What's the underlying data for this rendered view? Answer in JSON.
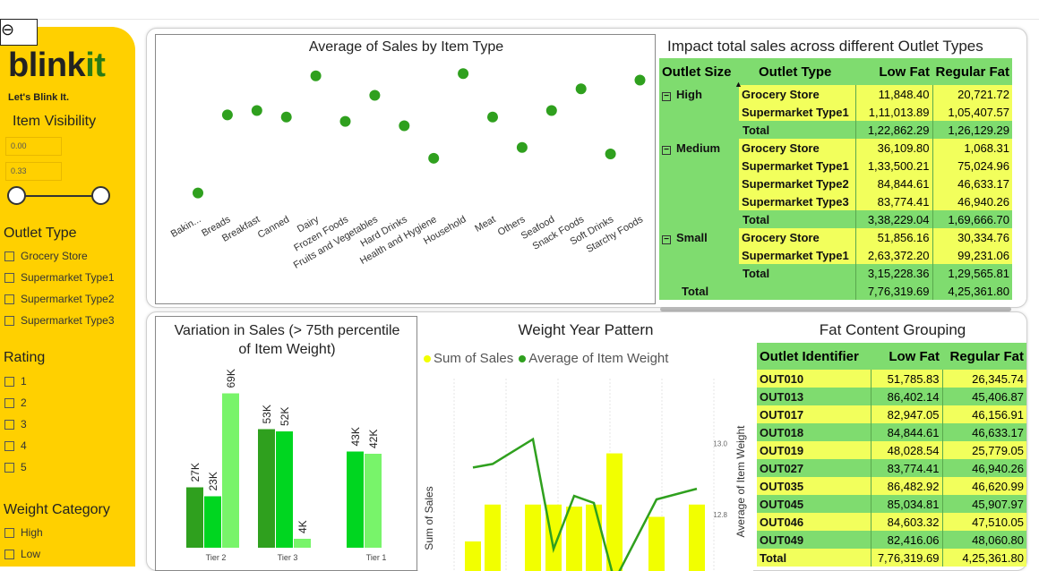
{
  "brand": {
    "name_part1": "blink",
    "name_part2": "it",
    "tagline": "Let's Blink It."
  },
  "colors": {
    "sidebar": "#ffd000",
    "green": "#2fa01e",
    "bright_green": "#00d620",
    "light_green": "#78f46a",
    "yellow": "#f2ff00",
    "table_green": "#7fdc6f",
    "table_yellow": "#f2ff5c"
  },
  "back_button": {
    "icon": "back-arrow-icon",
    "glyph": "⊖"
  },
  "filters": {
    "item_visibility": {
      "title": "Item Visibility",
      "min_value": "0.00",
      "max_value": "0.33",
      "min_fraction": 0.0,
      "max_fraction": 1.0
    },
    "outlet_type": {
      "title": "Outlet Type",
      "options": [
        "Grocery Store",
        "Supermarket Type1",
        "Supermarket Type2",
        "Supermarket Type3"
      ]
    },
    "rating": {
      "title": "Rating",
      "options": [
        "1",
        "2",
        "3",
        "4",
        "5"
      ]
    },
    "weight_category": {
      "title": "Weight Category",
      "options": [
        "High",
        "Low"
      ]
    }
  },
  "avg_sales_chart": {
    "title": "Average of Sales by Item Type",
    "chart_data": {
      "type": "scatter",
      "title": "Average of Sales by Item Type",
      "categories": [
        "Bakin...",
        "Breads",
        "Breakfast",
        "Canned",
        "Dairy",
        "Frozen Foods",
        "Fruits and Vegetables",
        "Hard Drinks",
        "Health and Hygiene",
        "Household",
        "Meat",
        "Others",
        "Seafood",
        "Snack Foods",
        "Soft Drinks",
        "Starchy Foods"
      ],
      "values": [
        124.0,
        142.0,
        143.0,
        141.5,
        151.0,
        140.5,
        146.5,
        139.5,
        132.0,
        151.5,
        141.5,
        134.5,
        143.0,
        148.0,
        133.0,
        150.0
      ],
      "ylim": [
        120,
        153
      ]
    }
  },
  "impact_table": {
    "title": "Impact total sales across different Outlet Types",
    "headers": [
      "Outlet Size",
      "Outlet Type",
      "Low Fat",
      "Regular Fat"
    ],
    "groups": [
      {
        "size": "High",
        "rows": [
          {
            "type": "Grocery Store",
            "low": "11,848.40",
            "reg": "20,721.72"
          },
          {
            "type": "Supermarket Type1",
            "low": "1,11,013.89",
            "reg": "1,05,407.57"
          },
          {
            "type": "Total",
            "low": "1,22,862.29",
            "reg": "1,26,129.29"
          }
        ]
      },
      {
        "size": "Medium",
        "rows": [
          {
            "type": "Grocery Store",
            "low": "36,109.80",
            "reg": "1,068.31"
          },
          {
            "type": "Supermarket Type1",
            "low": "1,33,500.21",
            "reg": "75,024.96"
          },
          {
            "type": "Supermarket Type2",
            "low": "84,844.61",
            "reg": "46,633.17"
          },
          {
            "type": "Supermarket Type3",
            "low": "83,774.41",
            "reg": "46,940.26"
          },
          {
            "type": "Total",
            "low": "3,38,229.04",
            "reg": "1,69,666.70"
          }
        ]
      },
      {
        "size": "Small",
        "rows": [
          {
            "type": "Grocery Store",
            "low": "51,856.16",
            "reg": "30,334.76"
          },
          {
            "type": "Supermarket Type1",
            "low": "2,63,372.20",
            "reg": "99,231.06"
          },
          {
            "type": "Total",
            "low": "3,15,228.36",
            "reg": "1,29,565.81"
          }
        ]
      }
    ],
    "grand_total": {
      "label": "Total",
      "low": "7,76,319.69",
      "reg": "4,25,361.80"
    }
  },
  "variation_chart": {
    "title_line1": "Variation in Sales (> 75th percentile",
    "title_line2": "of Item Weight)",
    "chart_data": {
      "type": "bar",
      "categories": [
        "Tier 2",
        "Tier 3",
        "Tier 1"
      ],
      "series": [
        {
          "values": [
            27,
            53,
            null
          ],
          "labels": [
            "27K",
            "53K",
            ""
          ],
          "color": "#2fa01e"
        },
        {
          "values": [
            23,
            52,
            43
          ],
          "labels": [
            "23K",
            "52K",
            "43K"
          ],
          "color": "#00d620"
        },
        {
          "values": [
            69,
            4,
            42
          ],
          "labels": [
            "69K",
            "4K",
            "42K"
          ],
          "color": "#78f46a"
        }
      ],
      "ylim": [
        0,
        72
      ]
    }
  },
  "weight_year_chart": {
    "title": "Weight Year Pattern",
    "legend": [
      "Sum of Sales",
      "Average of Item Weight"
    ],
    "ylabel_left": "Sum of Sales",
    "ylabel_right": "Average of Item Weight",
    "right_ticks": [
      "13.0",
      "12.8"
    ],
    "chart_data": {
      "type": "bar",
      "bar_series": {
        "name": "Sum of Sales",
        "values": [
          0.42,
          0.78,
          0.78,
          0.78,
          0.76,
          0.78,
          1.28,
          0.66,
          0.78
        ]
      },
      "line_series": {
        "name": "Average of Item Weight",
        "values": [
          12.93,
          12.94,
          13.01,
          12.7,
          12.85,
          12.83,
          12.61,
          12.84,
          12.87
        ]
      },
      "right_ylim": [
        12.6,
        13.08
      ]
    }
  },
  "fat_table": {
    "title": "Fat Content Grouping",
    "headers": [
      "Outlet Identifier",
      "Low Fat",
      "Regular Fat"
    ],
    "rows": [
      {
        "id": "OUT010",
        "low": "51,785.83",
        "reg": "26,345.74"
      },
      {
        "id": "OUT013",
        "low": "86,402.14",
        "reg": "45,406.87"
      },
      {
        "id": "OUT017",
        "low": "82,947.05",
        "reg": "46,156.91"
      },
      {
        "id": "OUT018",
        "low": "84,844.61",
        "reg": "46,633.17"
      },
      {
        "id": "OUT019",
        "low": "48,028.54",
        "reg": "25,779.05"
      },
      {
        "id": "OUT027",
        "low": "83,774.41",
        "reg": "46,940.26"
      },
      {
        "id": "OUT035",
        "low": "86,482.92",
        "reg": "46,620.99"
      },
      {
        "id": "OUT045",
        "low": "85,034.81",
        "reg": "45,907.97"
      },
      {
        "id": "OUT046",
        "low": "84,603.32",
        "reg": "47,510.05"
      },
      {
        "id": "OUT049",
        "low": "82,416.06",
        "reg": "48,060.80"
      }
    ],
    "total": {
      "label": "Total",
      "low": "7,76,319.69",
      "reg": "4,25,361.80"
    }
  }
}
